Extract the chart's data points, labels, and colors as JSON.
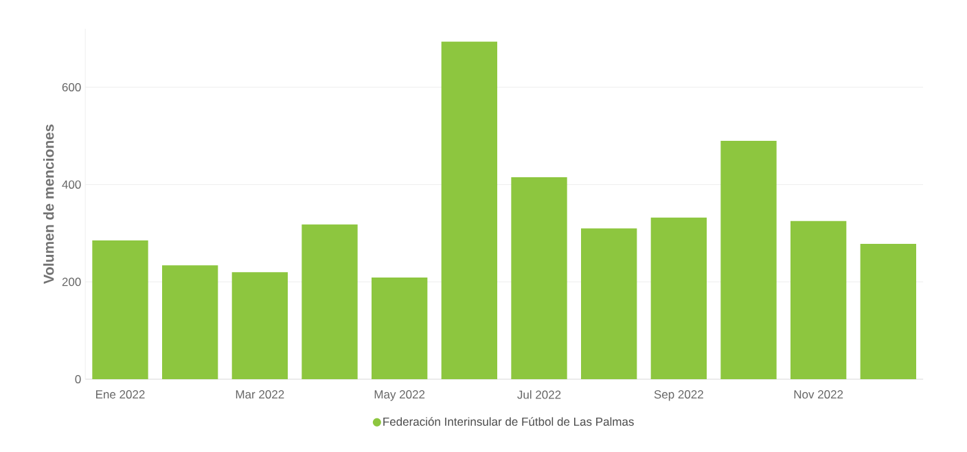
{
  "chart_data": {
    "type": "bar",
    "ylabel": "Volumen de menciones",
    "categories": [
      "Ene 2022",
      null,
      "Mar 2022",
      null,
      "May 2022",
      null,
      "Jul 2022",
      null,
      "Sep 2022",
      null,
      "Nov 2022",
      null
    ],
    "series": [
      {
        "name": "Federación Interinsular de Fútbol de Las Palmas",
        "color": "#8dc63f",
        "values": [
          285,
          234,
          220,
          318,
          209,
          694,
          415,
          310,
          332,
          490,
          325,
          278
        ]
      }
    ],
    "ylim": [
      0,
      720
    ],
    "yticks": [
      0,
      200,
      400,
      600
    ],
    "grid": "y",
    "legend": "bottom"
  }
}
